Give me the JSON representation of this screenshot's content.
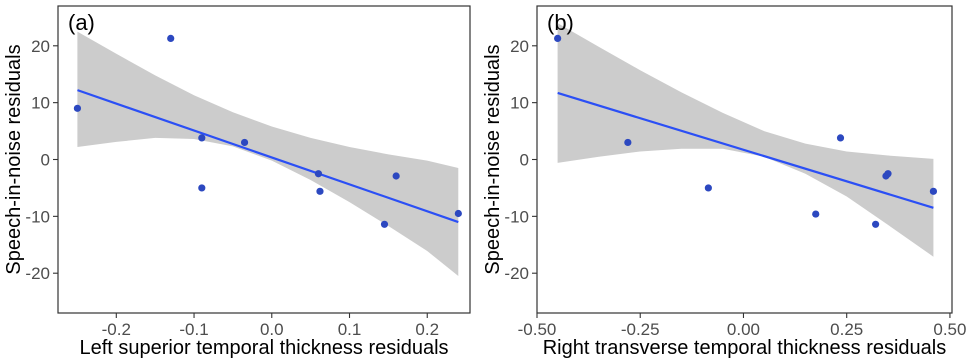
{
  "chart_data": [
    {
      "type": "scatter",
      "panel_label": "(a)",
      "xlabel": "Left superior temporal thickness residuals",
      "ylabel": "Speech-in-noise residuals",
      "xlim": [
        -0.275,
        0.255
      ],
      "ylim": [
        -27,
        27
      ],
      "x_ticks": [
        -0.2,
        -0.1,
        0.0,
        0.1,
        0.2
      ],
      "x_tick_labels": [
        "-0.2",
        "-0.1",
        "0.0",
        "0.1",
        "0.2"
      ],
      "y_ticks": [
        20,
        10,
        0,
        -10,
        -20
      ],
      "y_tick_labels": [
        "20",
        "10",
        "0",
        "-10",
        "-20"
      ],
      "points": [
        {
          "x": -0.25,
          "y": 9.0
        },
        {
          "x": -0.13,
          "y": 21.3
        },
        {
          "x": -0.09,
          "y": 3.8
        },
        {
          "x": -0.09,
          "y": -5.0
        },
        {
          "x": -0.035,
          "y": 3.0
        },
        {
          "x": 0.06,
          "y": -2.5
        },
        {
          "x": 0.062,
          "y": -5.6
        },
        {
          "x": 0.145,
          "y": -11.4
        },
        {
          "x": 0.16,
          "y": -2.9
        },
        {
          "x": 0.24,
          "y": -9.5
        }
      ],
      "fit_line": {
        "x": [
          -0.25,
          0.24
        ],
        "y": [
          12.2,
          -11.0
        ]
      },
      "confidence_band": {
        "x": [
          -0.25,
          -0.2,
          -0.15,
          -0.1,
          -0.05,
          0.0,
          0.05,
          0.1,
          0.15,
          0.2,
          0.24
        ],
        "upper": [
          22.5,
          18.6,
          14.8,
          11.3,
          8.3,
          5.8,
          3.8,
          2.2,
          0.9,
          -0.2,
          -1.5
        ],
        "lower": [
          2.2,
          3.1,
          3.8,
          3.6,
          2.3,
          -0.2,
          -3.6,
          -7.5,
          -11.7,
          -16.1,
          -20.5
        ]
      },
      "colors": {
        "point": "#2c48c0",
        "line": "#2b4ff5",
        "band": "#cccccc"
      },
      "grid": false
    },
    {
      "type": "scatter",
      "panel_label": "(b)",
      "xlabel": "Right transverse temporal thickness residuals",
      "ylabel": "Speech-in-noise residuals",
      "xlim": [
        -0.5,
        0.505
      ],
      "ylim": [
        -27,
        27
      ],
      "x_ticks": [
        -0.5,
        -0.25,
        0.0,
        0.25,
        0.5
      ],
      "x_tick_labels": [
        "-0.50",
        "-0.25",
        "0.00",
        "0.25",
        "0.50"
      ],
      "y_ticks": [
        20,
        10,
        0,
        -10,
        -20
      ],
      "y_tick_labels": [
        "20",
        "10",
        "0",
        "-10",
        "-20"
      ],
      "points": [
        {
          "x": -0.45,
          "y": 21.3
        },
        {
          "x": -0.28,
          "y": 3.0
        },
        {
          "x": -0.085,
          "y": -5.0
        },
        {
          "x": 0.175,
          "y": -9.6
        },
        {
          "x": 0.235,
          "y": 3.8
        },
        {
          "x": 0.32,
          "y": -11.4
        },
        {
          "x": 0.345,
          "y": -2.9
        },
        {
          "x": 0.35,
          "y": -2.5
        },
        {
          "x": 0.46,
          "y": -5.6
        }
      ],
      "fit_line": {
        "x": [
          -0.45,
          0.46
        ],
        "y": [
          11.7,
          -8.5
        ]
      },
      "confidence_band": {
        "x": [
          -0.45,
          -0.35,
          -0.25,
          -0.15,
          -0.05,
          0.05,
          0.15,
          0.25,
          0.35,
          0.46
        ],
        "upper": [
          24.0,
          19.8,
          15.7,
          11.8,
          8.2,
          5.0,
          2.8,
          1.4,
          0.7,
          0.1
        ],
        "lower": [
          -0.6,
          0.5,
          1.4,
          1.9,
          1.9,
          0.5,
          -2.5,
          -6.5,
          -11.5,
          -17.1
        ]
      },
      "colors": {
        "point": "#2c48c0",
        "line": "#2b4ff5",
        "band": "#cccccc"
      },
      "grid": false
    }
  ]
}
